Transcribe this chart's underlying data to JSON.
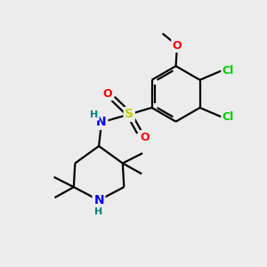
{
  "bg_color": "#ececec",
  "bond_color": "#000000",
  "atom_colors": {
    "N": "#0000ff",
    "O": "#ff0000",
    "S": "#cccc00",
    "Cl": "#00cc00",
    "C": "#000000",
    "H": "#008080"
  },
  "figsize": [
    3.0,
    3.0
  ],
  "dpi": 100
}
